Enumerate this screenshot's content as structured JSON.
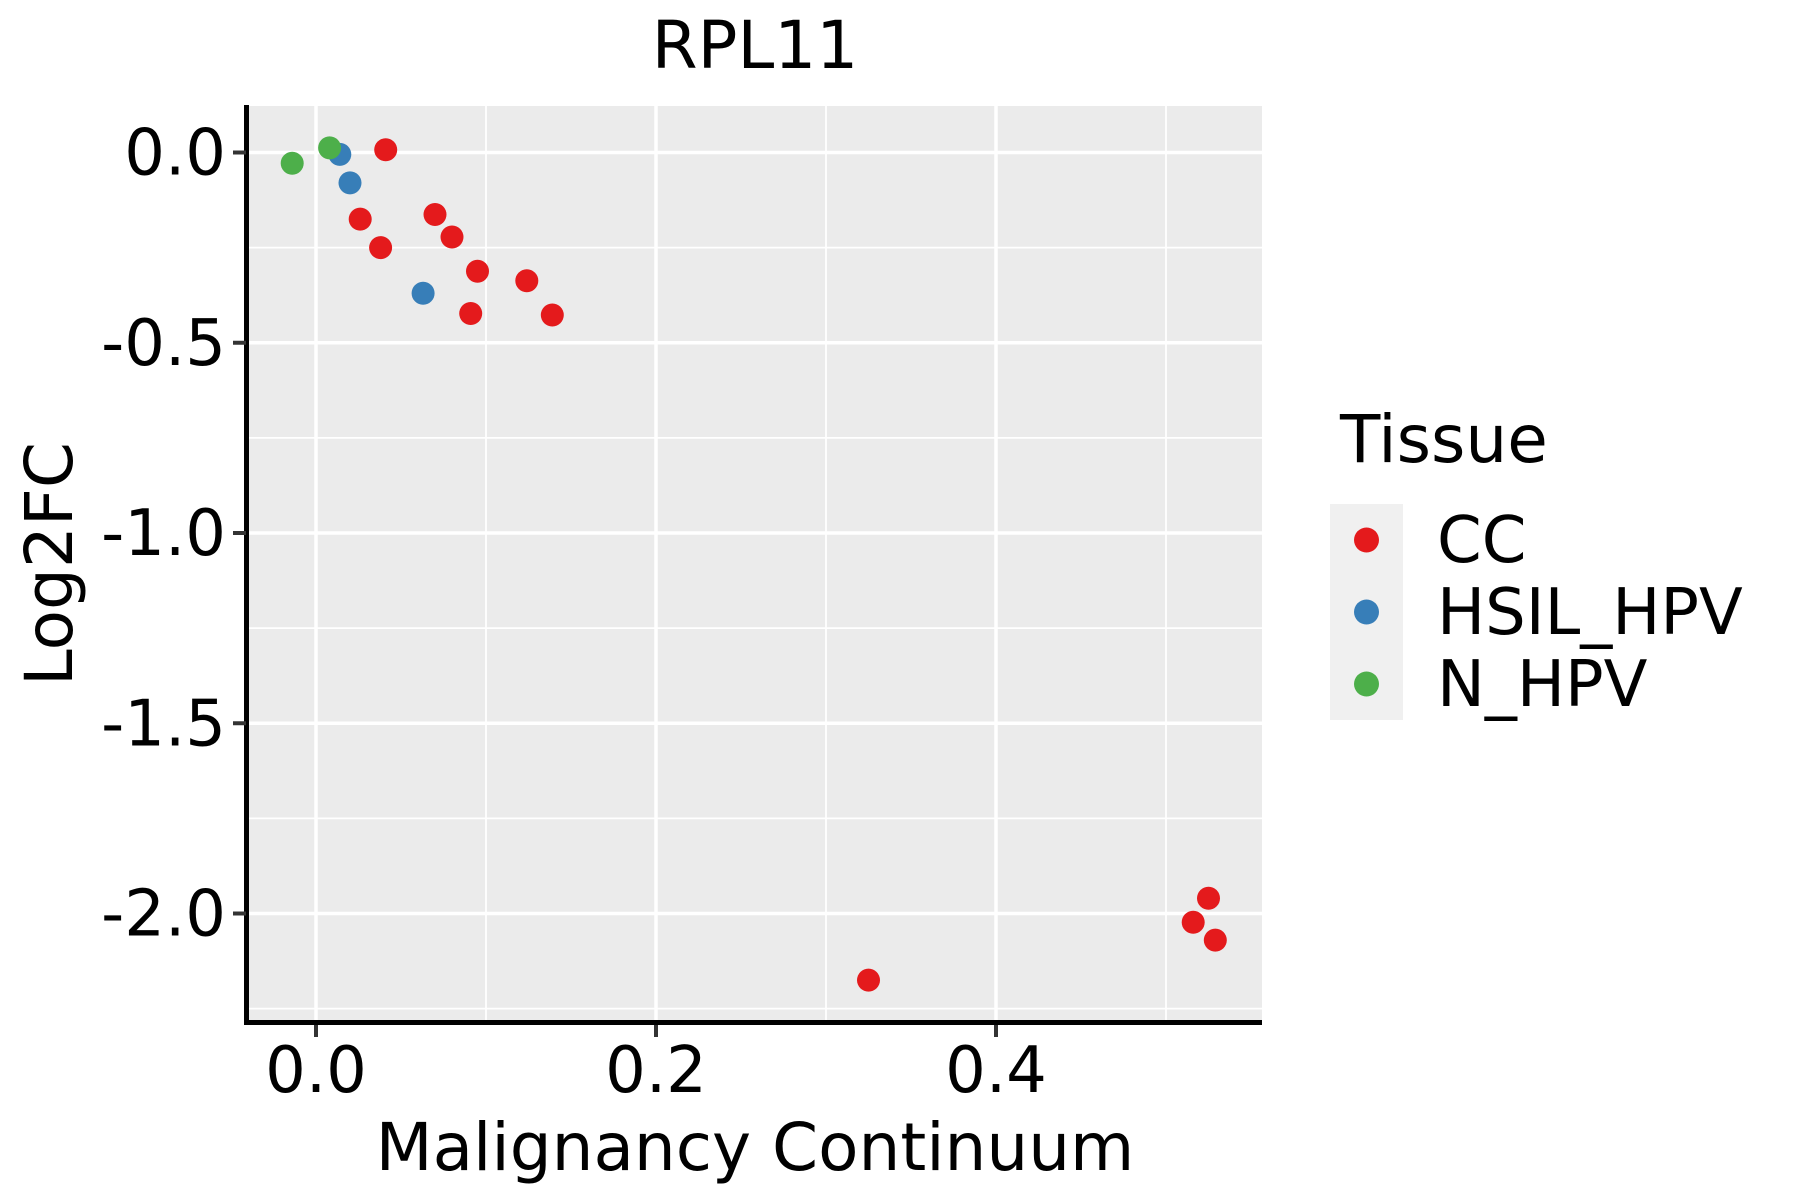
{
  "figure": {
    "background": "#FFFFFF"
  },
  "chart_data": {
    "type": "scatter",
    "title": "RPL11",
    "xlabel": "Malignancy Continuum",
    "ylabel": "Log2FC",
    "x_axis": {
      "ticks": [
        0.0,
        0.2,
        0.4
      ],
      "tick_labels": [
        "0.0",
        "0.2",
        "0.4"
      ],
      "minor_ticks": [
        0.1,
        0.3,
        0.5
      ],
      "range": [
        -0.0394,
        0.5565
      ]
    },
    "y_axis": {
      "ticks": [
        0.0,
        -0.5,
        -1.0,
        -1.5,
        -2.0
      ],
      "tick_labels": [
        "0.0",
        "-0.5",
        "-1.0",
        "-1.5",
        "-2.0"
      ],
      "minor_ticks": [
        -0.25,
        -0.75,
        -1.25,
        -1.75,
        -2.25
      ],
      "range": [
        -2.2865,
        0.1215
      ]
    },
    "legend": {
      "title": "Tissue",
      "position": "right",
      "entries": [
        {
          "label": "CC",
          "color": "#E41A1C"
        },
        {
          "label": "HSIL_HPV",
          "color": "#377EB8"
        },
        {
          "label": "N_HPV",
          "color": "#4DAF4A"
        }
      ]
    },
    "series": [
      {
        "name": "CC",
        "color": "#E41A1C",
        "points": [
          [
            0.041,
            0.007
          ],
          [
            0.026,
            -0.175
          ],
          [
            0.038,
            -0.25
          ],
          [
            0.07,
            -0.163
          ],
          [
            0.08,
            -0.222
          ],
          [
            0.095,
            -0.312
          ],
          [
            0.091,
            -0.423
          ],
          [
            0.124,
            -0.337
          ],
          [
            0.139,
            -0.427
          ],
          [
            0.325,
            -2.175
          ],
          [
            0.525,
            -1.96
          ],
          [
            0.516,
            -2.023
          ],
          [
            0.529,
            -2.07
          ]
        ]
      },
      {
        "name": "HSIL_HPV",
        "color": "#377EB8",
        "points": [
          [
            0.014,
            -0.005
          ],
          [
            0.02,
            -0.08
          ],
          [
            0.063,
            -0.37
          ]
        ]
      },
      {
        "name": "N_HPV",
        "color": "#4DAF4A",
        "points": [
          [
            -0.014,
            -0.028
          ],
          [
            0.008,
            0.012
          ]
        ]
      }
    ],
    "style": {
      "panel_background": "#EBEBEB",
      "grid_major_color": "#FFFFFF",
      "grid_minor_color": "#FFFFFF",
      "axis_line_color": "#000000",
      "tick_mark_color": "#333333",
      "text_color": "#000000",
      "legend_key_background": "#F0F0F0",
      "point_radius": 11.5,
      "legend_point_radius": 12.5
    }
  }
}
